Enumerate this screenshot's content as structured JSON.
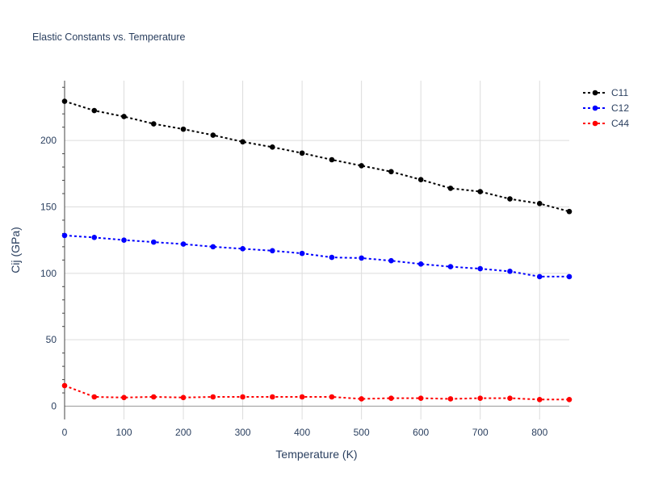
{
  "chart_data": {
    "type": "line",
    "title": "Elastic Constants vs. Temperature",
    "xlabel": "Temperature (K)",
    "ylabel": "Cij (GPa)",
    "xlim": [
      0,
      850
    ],
    "ylim": [
      -10,
      245
    ],
    "x_ticks": [
      0,
      100,
      200,
      300,
      400,
      500,
      600,
      700,
      800
    ],
    "y_ticks": [
      0,
      50,
      100,
      150,
      200
    ],
    "x_tick_labels": [
      "0",
      "100",
      "200",
      "300",
      "400",
      "500",
      "600",
      "700",
      "800"
    ],
    "y_tick_labels": [
      "0",
      "50",
      "100",
      "150",
      "200"
    ],
    "grid": true,
    "legend_position": "top-right",
    "x": [
      0,
      50,
      100,
      150,
      200,
      250,
      300,
      350,
      400,
      450,
      500,
      550,
      600,
      650,
      700,
      750,
      800,
      850
    ],
    "series": [
      {
        "name": "C11",
        "color": "#000000",
        "values": [
          229.5,
          222.5,
          218,
          212.5,
          208.5,
          204,
          199,
          195,
          190.5,
          185.5,
          181,
          176.5,
          170.5,
          164,
          161.5,
          156,
          152.5,
          146.5
        ]
      },
      {
        "name": "C12",
        "color": "#0000ff",
        "values": [
          128.5,
          127,
          125,
          123.5,
          122,
          120,
          118.5,
          117,
          115,
          112,
          111.5,
          109.5,
          107,
          105,
          103.5,
          101.5,
          97.5,
          97.5
        ]
      },
      {
        "name": "C44",
        "color": "#ff0000",
        "values": [
          15.5,
          7,
          6.5,
          7,
          6.5,
          7,
          7,
          7,
          7,
          7,
          5.5,
          6,
          6,
          5.5,
          6,
          6,
          5,
          5
        ]
      }
    ]
  }
}
